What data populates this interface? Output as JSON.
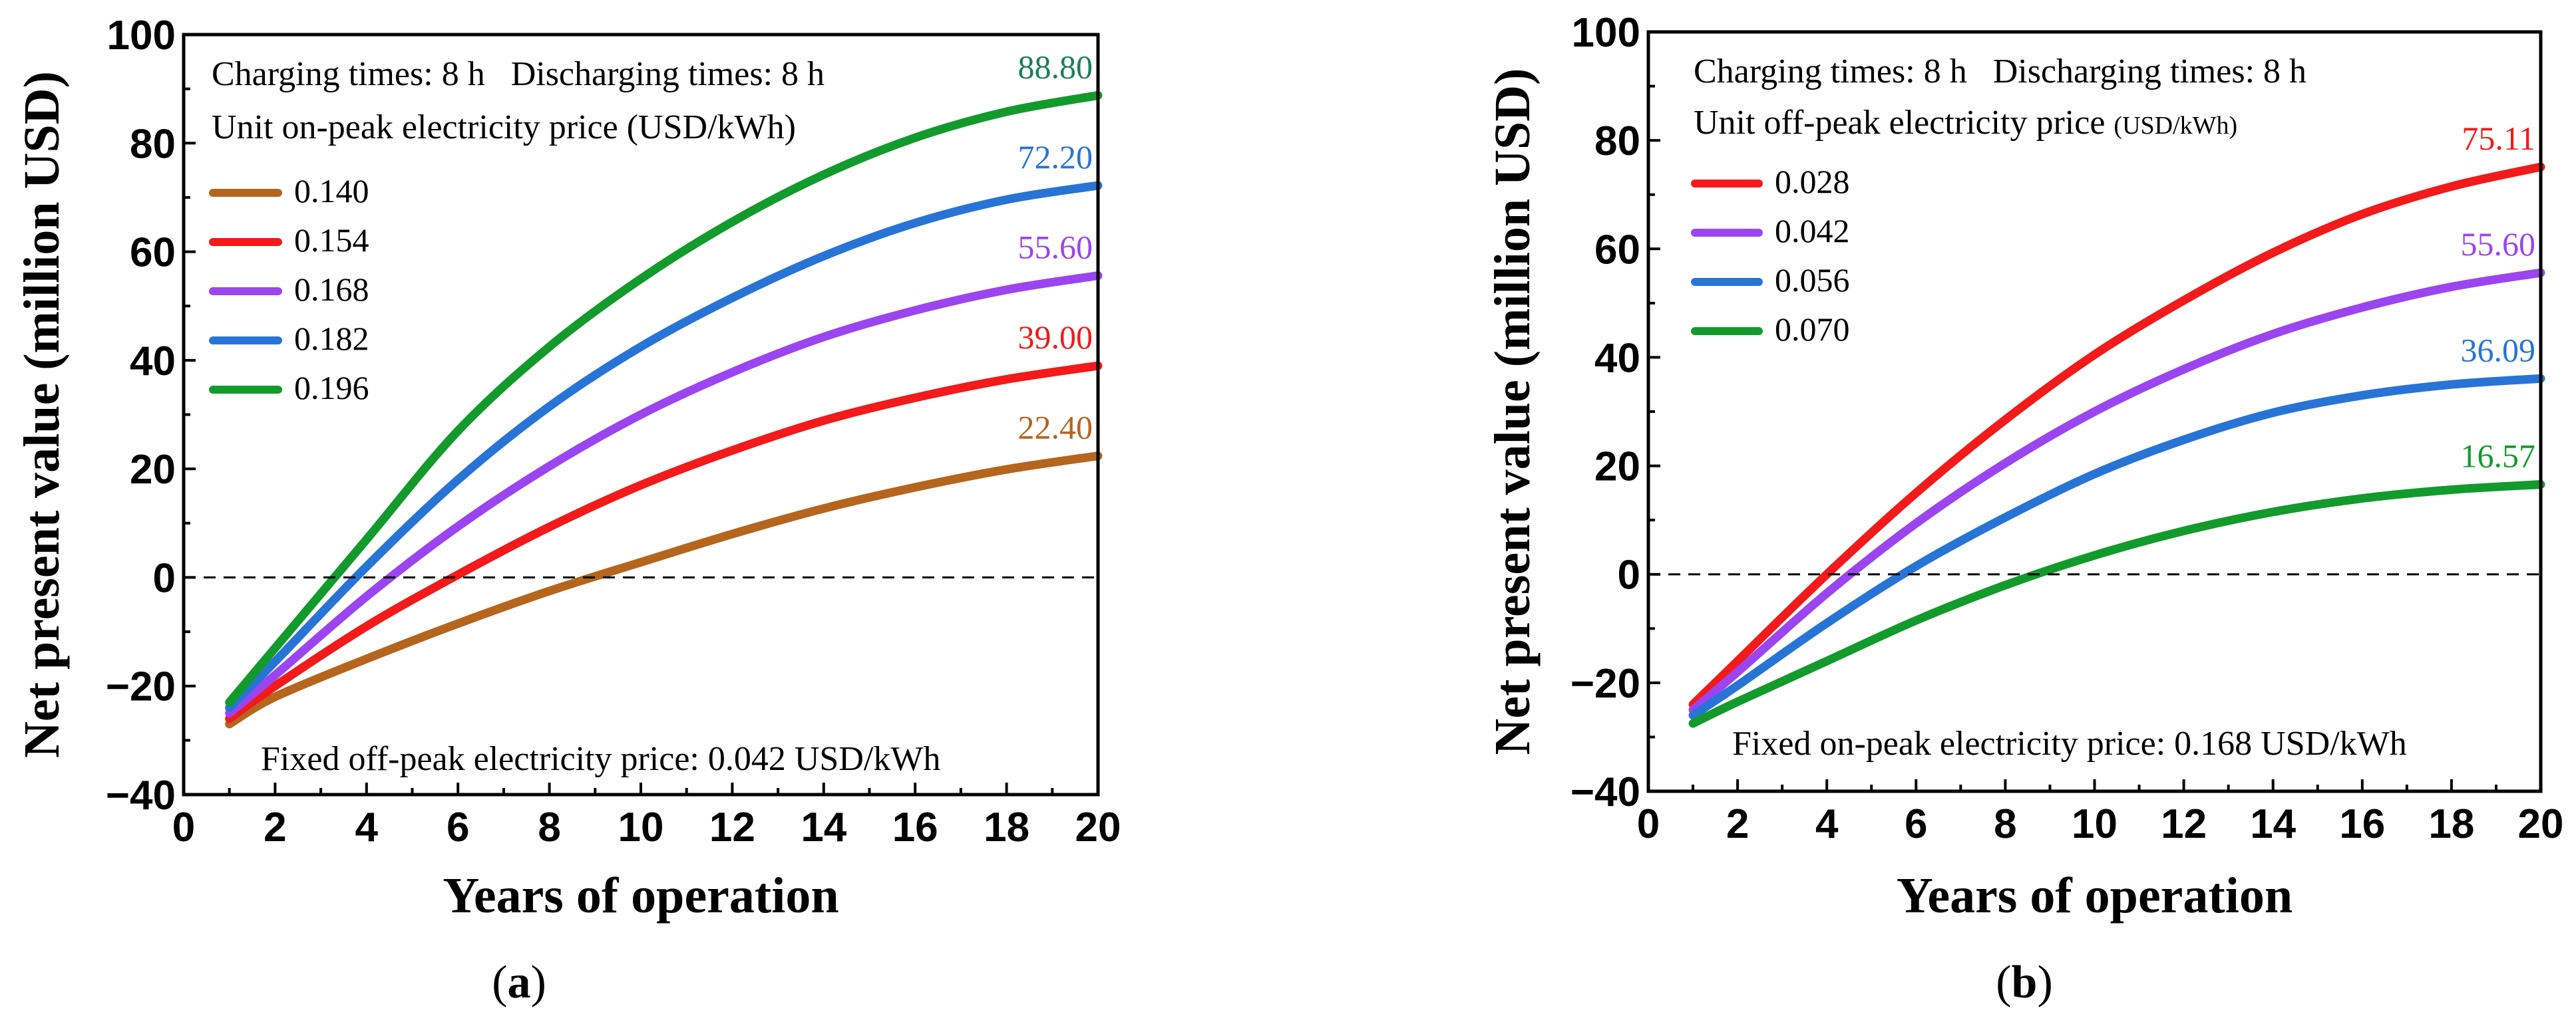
{
  "chart_data": [
    {
      "type": "line",
      "panel_label": "a",
      "xlabel": "Years of operation",
      "ylabel": "Net present value (million USD)",
      "xlim": [
        0,
        20
      ],
      "ylim": [
        -40,
        100
      ],
      "xticks": [
        0,
        2,
        4,
        6,
        8,
        10,
        12,
        14,
        16,
        18,
        20
      ],
      "yticks": [
        -40,
        -20,
        0,
        20,
        40,
        60,
        80,
        100
      ],
      "xtick_labels": [
        "0",
        "2",
        "4",
        "6",
        "8",
        "10",
        "12",
        "14",
        "16",
        "18",
        "20"
      ],
      "ytick_labels": [
        "−40",
        "−20",
        "0",
        "20",
        "40",
        "60",
        "80",
        "100"
      ],
      "zero_line": true,
      "annotation_top": "Charging times: 8 h   Discharging times: 8 h",
      "legend_title_main": "Unit on-peak electricity price ",
      "legend_title_unit": "(USD/kWh)",
      "annotation_bottom": "Fixed off-peak electricity price: 0.042 USD/kWh",
      "x": [
        1,
        2,
        4,
        6,
        8,
        10,
        12,
        14,
        16,
        18,
        20
      ],
      "series": [
        {
          "name": "0.140",
          "color": "#b5651d",
          "end_label": "22.40",
          "values": [
            -27,
            -22,
            -15,
            -8.5,
            -2.5,
            2.8,
            8.0,
            12.7,
            16.6,
            19.9,
            22.4
          ]
        },
        {
          "name": "0.154",
          "color": "#f21a1a",
          "end_label": "39.00",
          "values": [
            -26,
            -20,
            -9.0,
            0.5,
            9.3,
            17.0,
            23.4,
            28.9,
            33.1,
            36.5,
            39.0
          ]
        },
        {
          "name": "0.168",
          "color": "#9b45f0",
          "end_label": "55.60",
          "values": [
            -25,
            -18,
            -3.5,
            9.4,
            20.5,
            30.0,
            37.8,
            44.3,
            49.2,
            53.0,
            55.6
          ]
        },
        {
          "name": "0.182",
          "color": "#2874d6",
          "end_label": "72.20",
          "values": [
            -24,
            -15.5,
            2.0,
            18.0,
            31.5,
            42.5,
            51.5,
            59.2,
            65.3,
            69.6,
            72.2
          ]
        },
        {
          "name": "0.196",
          "color": "#139a2c",
          "end_label": "88.80",
          "end_label_color": "#1a7f5a",
          "values": [
            -23,
            -13,
            7.0,
            27.0,
            42.5,
            55.0,
            65.5,
            74.2,
            81.0,
            85.8,
            88.8
          ]
        }
      ]
    },
    {
      "type": "line",
      "panel_label": "b",
      "xlabel": "Years of operation",
      "ylabel": "Net present value (million USD)",
      "xlim": [
        0,
        20
      ],
      "ylim": [
        -40,
        100
      ],
      "xticks": [
        0,
        2,
        4,
        6,
        8,
        10,
        12,
        14,
        16,
        18,
        20
      ],
      "yticks": [
        -40,
        -20,
        0,
        20,
        40,
        60,
        80,
        100
      ],
      "xtick_labels": [
        "0",
        "2",
        "4",
        "6",
        "8",
        "10",
        "12",
        "14",
        "16",
        "18",
        "20"
      ],
      "ytick_labels": [
        "−40",
        "−20",
        "0",
        "20",
        "40",
        "60",
        "80",
        "100"
      ],
      "zero_line": true,
      "annotation_top": "Charging times: 8 h   Discharging times: 8 h",
      "legend_title_main": "Unit off-peak electricity price ",
      "legend_title_unit": "(USD/kWh)",
      "annotation_bottom": "Fixed on-peak electricity price: 0.168 USD/kWh",
      "x": [
        1,
        2,
        4,
        6,
        8,
        10,
        12,
        14,
        16,
        18,
        20
      ],
      "series": [
        {
          "name": "0.028",
          "color": "#f21a1a",
          "end_label": "75.11",
          "values": [
            -24,
            -16,
            0.0,
            15.0,
            28.5,
            40.5,
            50.5,
            59.3,
            66.4,
            71.5,
            75.11
          ]
        },
        {
          "name": "0.042",
          "color": "#9b45f0",
          "end_label": "55.60",
          "values": [
            -25,
            -18,
            -3.5,
            9.4,
            20.5,
            30.0,
            37.8,
            44.3,
            49.2,
            53.0,
            55.6
          ]
        },
        {
          "name": "0.056",
          "color": "#2874d6",
          "end_label": "36.09",
          "values": [
            -26,
            -20.5,
            -9.0,
            1.5,
            10.5,
            18.5,
            24.8,
            29.8,
            33.0,
            35.0,
            36.09
          ]
        },
        {
          "name": "0.070",
          "color": "#139a2c",
          "end_label": "16.57",
          "end_label_color": "#139a2c",
          "values": [
            -27.5,
            -23.5,
            -16.0,
            -8.5,
            -2.0,
            3.5,
            8.0,
            11.5,
            14.0,
            15.6,
            16.57
          ]
        }
      ]
    }
  ]
}
